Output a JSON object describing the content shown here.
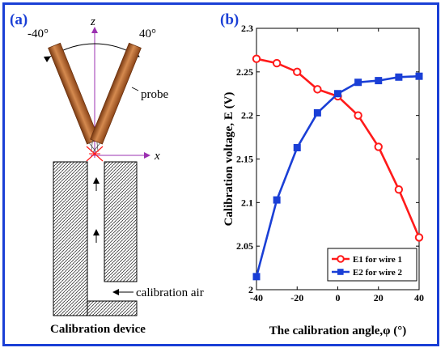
{
  "panel_a": {
    "label": "(a)",
    "angle_left": "-40°",
    "angle_right": "40°",
    "z_axis": "z",
    "x_axis": "x",
    "probe_label": "probe",
    "air_label": "calibration air",
    "caption": "Calibration device"
  },
  "panel_b": {
    "label": "(b)"
  },
  "colors": {
    "frame": "#1a3fd6",
    "series1": "#ff1a1a",
    "series2": "#1a3fd6",
    "probe": "#b8652e"
  },
  "chart_data": {
    "type": "line",
    "xlabel": "The calibration angle,φ  (°)",
    "ylabel": "Calibration voltage, E (V)",
    "xlim": [
      -40,
      40
    ],
    "ylim": [
      2,
      2.3
    ],
    "xticks": [
      "-40",
      "-20",
      "0",
      "20",
      "40"
    ],
    "yticks": [
      "2",
      "2.05",
      "2.1",
      "2.15",
      "2.2",
      "2.25",
      "2.3"
    ],
    "legend_position": "bottom-right",
    "series": [
      {
        "name": "E1 for wire 1",
        "marker": "circle",
        "color": "#ff1a1a",
        "x": [
          -40,
          -30,
          -20,
          -10,
          0,
          10,
          20,
          30,
          40
        ],
        "y": [
          2.265,
          2.26,
          2.25,
          2.23,
          2.222,
          2.2,
          2.164,
          2.115,
          2.06
        ]
      },
      {
        "name": "E2 for wire 2",
        "marker": "square",
        "color": "#1a3fd6",
        "x": [
          -40,
          -30,
          -20,
          -10,
          0,
          10,
          20,
          30,
          40
        ],
        "y": [
          2.015,
          2.103,
          2.163,
          2.203,
          2.225,
          2.238,
          2.24,
          2.244,
          2.245
        ]
      }
    ]
  }
}
